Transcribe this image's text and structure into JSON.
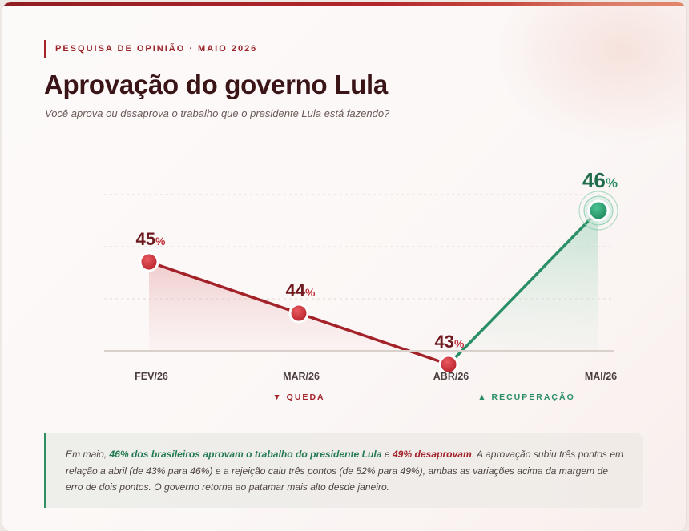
{
  "kicker": "PESQUISA DE OPINIÃO · MAIO 2026",
  "title": "Aprovação do governo Lula",
  "subtitle": "Você aprova ou desaprova o trabalho que o presidente Lula está fazendo?",
  "chart_data": {
    "type": "line",
    "categories": [
      "FEV/26",
      "MAR/26",
      "ABR/26",
      "MAI/26"
    ],
    "values": [
      45,
      44,
      43,
      46
    ],
    "value_suffix": "%",
    "segment_labels": [
      "▼ QUEDA",
      "▲ RECUPERAÇÃO"
    ],
    "grid": true,
    "colors": {
      "decline": "#a3222a",
      "recovery": "#2a8f66",
      "point_red": "#cf2f36",
      "point_green": "#27a271"
    }
  },
  "note": {
    "p1": "Em maio, ",
    "h1": "46% dos brasileiros aprovam o trabalho do presidente Lula",
    "p2": " e ",
    "h2": "49% desaprovam",
    "p3": ". A aprovação subiu três pontos em relação a abril (de 43% para 46%) e a rejeição caiu três pontos (de 52% para 49%), ambas as variações acima da margem de erro de dois pontos. O governo retorna ao patamar mais alto desde janeiro."
  }
}
